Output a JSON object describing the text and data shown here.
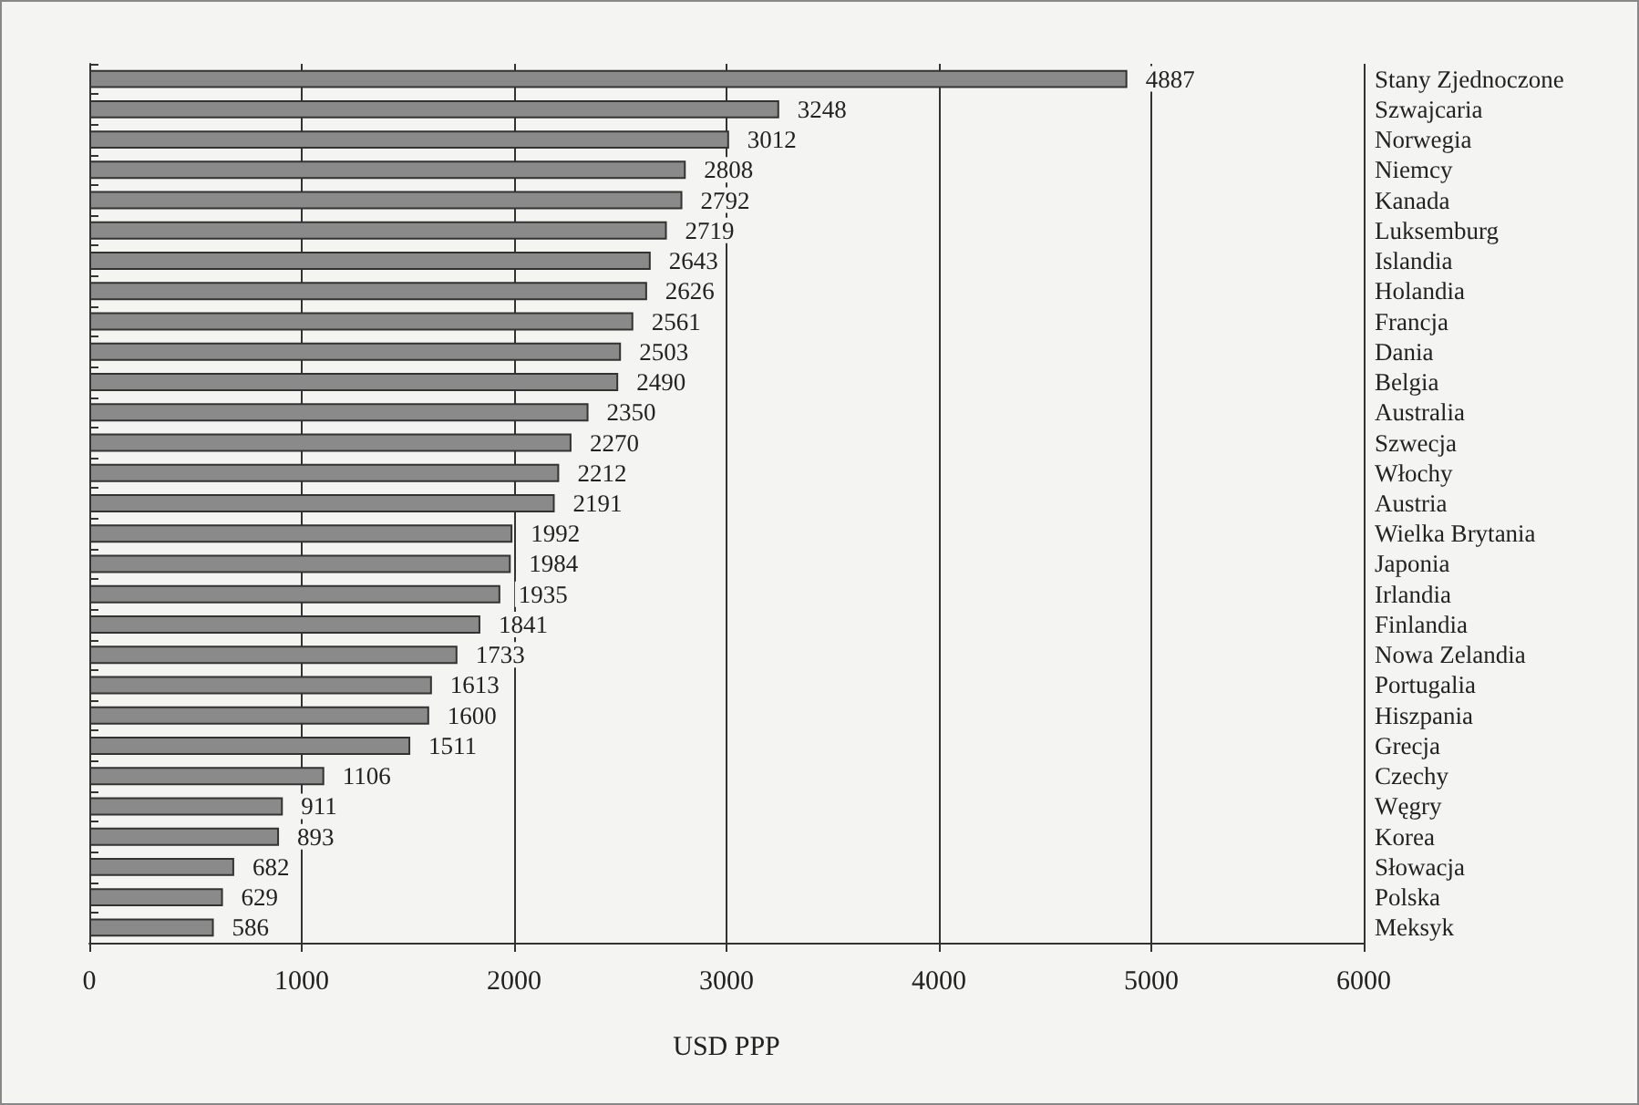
{
  "chart_data": {
    "type": "bar",
    "orientation": "horizontal",
    "xlabel": "USD PPP",
    "categories": [
      "Stany Zjednoczone",
      "Szwajcaria",
      "Norwegia",
      "Niemcy",
      "Kanada",
      "Luksemburg",
      "Islandia",
      "Holandia",
      "Francja",
      "Dania",
      "Belgia",
      "Australia",
      "Szwecja",
      "Włochy",
      "Austria",
      "Wielka Brytania",
      "Japonia",
      "Irlandia",
      "Finlandia",
      "Nowa Zelandia",
      "Portugalia",
      "Hiszpania",
      "Grecja",
      "Czechy",
      "Węgry",
      "Korea",
      "Słowacja",
      "Polska",
      "Meksyk"
    ],
    "values": [
      4887,
      3248,
      3012,
      2808,
      2792,
      2719,
      2643,
      2626,
      2561,
      2503,
      2490,
      2350,
      2270,
      2212,
      2191,
      1992,
      1984,
      1935,
      1841,
      1733,
      1613,
      1600,
      1511,
      1106,
      911,
      893,
      682,
      629,
      586
    ],
    "color": "#8a8a8a",
    "xlim": [
      0,
      6000
    ],
    "xticks": [
      0,
      1000,
      2000,
      3000,
      4000,
      5000,
      6000
    ],
    "grid": "x",
    "data_labels": true
  }
}
